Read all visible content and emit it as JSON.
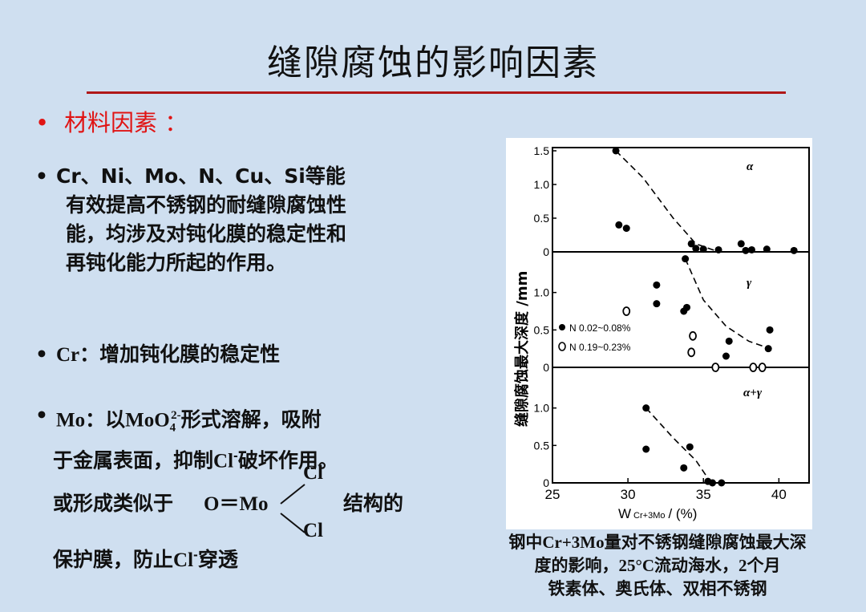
{
  "slide": {
    "title": "缝隙腐蚀的影响因素",
    "subhead_bullet": "•",
    "subhead": "材料因素 ："
  },
  "bullets": {
    "b1_line1": "Cr、Ni、Mo、N、Cu、Si等能",
    "b1_line2": "有效提高不锈钢的耐缝隙腐蚀性",
    "b1_line3": "能，均涉及对钝化膜的稳定性和",
    "b1_line4": "再钝化能力所起的作用。",
    "b2_prefix": "Cr",
    "b2_text": "：增加钝化膜的稳定性",
    "b3_prefix": "Mo",
    "b3_mid1": "：以",
    "b3_moo": "MoO",
    "b3_sub": "4",
    "b3_sup": "2-",
    "b3_tail": "形式溶解，吸附",
    "b3_line2a": "于金属表面，抑制",
    "b3_cl": "Cl",
    "b3_sup2": "-",
    "b3_line2b": "破坏作用。",
    "struct_prefix": "或形成类似于",
    "struct_formula": "O＝Mo",
    "struct_cl_top": "Cl",
    "struct_cl_bottom": "Cl",
    "struct_suffix": "结构的",
    "protect_a": "保护膜，防止",
    "protect_cl": "Cl",
    "protect_sup": "-",
    "protect_b": "穿透"
  },
  "figure": {
    "ylabel": "缝隙腐蚀最大深度 /mm",
    "xlabel_w": "W",
    "xlabel_sub": "Cr+3Mo",
    "xlabel_unit": "/ (%)",
    "x_ticks": [
      "25",
      "30",
      "35",
      "40"
    ],
    "panel_labels": [
      "α",
      "γ",
      "α+γ"
    ],
    "y_ticks_top": [
      "1.5",
      "1.0",
      "0.5",
      "0"
    ],
    "y_ticks_mid": [
      "1.0",
      "0.5",
      "0"
    ],
    "y_ticks_bot": [
      "1.0",
      "0.5",
      "0"
    ],
    "legend_filled": "N 0.02~0.08%",
    "legend_open": "N 0.19~0.23%",
    "xlim": [
      25,
      42
    ],
    "ylim": [
      0,
      1.5
    ]
  },
  "chart_data": [
    {
      "type": "scatter",
      "panel": "α",
      "series": [
        {
          "name": "",
          "x": [
            29.2,
            29.4,
            29.9,
            34.2,
            34.5,
            35.0,
            36.0,
            37.5,
            37.8,
            38.2,
            39.2,
            41.0
          ],
          "y": [
            1.5,
            0.4,
            0.35,
            0.12,
            0.05,
            0.04,
            0.03,
            0.12,
            0.02,
            0.03,
            0.04,
            0.02
          ],
          "marker": "filled"
        }
      ],
      "trend": {
        "x": [
          29.2,
          31.0,
          33.0,
          34.5,
          36.0
        ],
        "y": [
          1.5,
          1.1,
          0.5,
          0.12,
          0.0
        ]
      }
    },
    {
      "type": "scatter",
      "panel": "γ",
      "series": [
        {
          "name": "N 0.02~0.08%",
          "x": [
            33.8,
            31.9,
            31.9,
            33.7,
            33.9,
            36.7,
            36.5,
            39.4,
            39.3
          ],
          "y": [
            1.45,
            1.1,
            0.85,
            0.75,
            0.8,
            0.35,
            0.15,
            0.5,
            0.25
          ],
          "marker": "filled"
        },
        {
          "name": "N 0.19~0.23%",
          "x": [
            29.9,
            34.3,
            34.2,
            35.8,
            38.3,
            38.9
          ],
          "y": [
            0.75,
            0.42,
            0.2,
            0.0,
            0.0,
            0.0
          ],
          "marker": "open"
        }
      ],
      "trend": {
        "x": [
          33.8,
          35.0,
          36.5,
          38.0,
          39.4
        ],
        "y": [
          1.45,
          0.9,
          0.55,
          0.35,
          0.25
        ]
      }
    },
    {
      "type": "scatter",
      "panel": "α+γ",
      "series": [
        {
          "name": "",
          "x": [
            31.2,
            31.2,
            33.7,
            34.1,
            35.3,
            35.6,
            36.2
          ],
          "y": [
            1.0,
            0.45,
            0.2,
            0.48,
            0.02,
            0.0,
            0.0
          ],
          "marker": "filled"
        }
      ],
      "trend": {
        "x": [
          31.2,
          33.0,
          34.5,
          35.5
        ],
        "y": [
          1.0,
          0.6,
          0.3,
          0.0
        ]
      }
    }
  ],
  "caption": {
    "line1_a": "钢中",
    "line1_b": "Cr+3Mo",
    "line1_c": "量对不锈钢缝隙腐蚀最大深",
    "line2_a": "度的影响，",
    "line2_b": "25°C",
    "line2_c": "流动海水，",
    "line2_d": "2",
    "line2_e": "个月",
    "line3": "铁素体、奥氏体、双相不锈钢"
  }
}
